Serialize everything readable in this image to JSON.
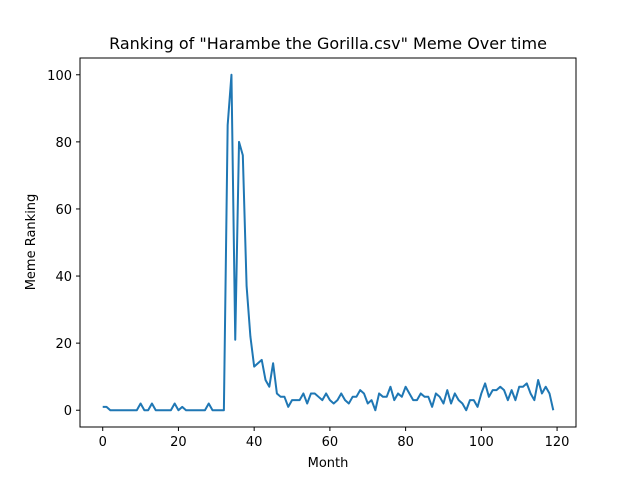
{
  "chart_data": {
    "type": "line",
    "title": "Ranking of \"Harambe the Gorilla.csv\" Meme Over time",
    "xlabel": "Month",
    "ylabel": "Meme Ranking",
    "xlim": [
      -6,
      125
    ],
    "ylim": [
      -5,
      105
    ],
    "xticks": [
      0,
      20,
      40,
      60,
      80,
      100,
      120
    ],
    "yticks": [
      0,
      20,
      40,
      60,
      80,
      100
    ],
    "grid": false,
    "line_color": "#1f77b4",
    "series": [
      {
        "x": [
          0,
          1,
          2,
          3,
          4,
          5,
          6,
          7,
          8,
          9,
          10,
          11,
          12,
          13,
          14,
          15,
          16,
          17,
          18,
          19,
          20,
          21,
          22,
          23,
          24,
          25,
          26,
          27,
          28,
          29,
          30,
          31,
          32,
          33,
          34,
          35,
          36,
          37,
          38,
          39,
          40,
          41,
          42,
          43,
          44,
          45,
          46,
          47,
          48,
          49,
          50,
          51,
          52,
          53,
          54,
          55,
          56,
          57,
          58,
          59,
          60,
          61,
          62,
          63,
          64,
          65,
          66,
          67,
          68,
          69,
          70,
          71,
          72,
          73,
          74,
          75,
          76,
          77,
          78,
          79,
          80,
          81,
          82,
          83,
          84,
          85,
          86,
          87,
          88,
          89,
          90,
          91,
          92,
          93,
          94,
          95,
          96,
          97,
          98,
          99,
          100,
          101,
          102,
          103,
          104,
          105,
          106,
          107,
          108,
          109,
          110,
          111,
          112,
          113,
          114,
          115,
          116,
          117,
          118,
          119
        ],
        "y": [
          1,
          1,
          0,
          0,
          0,
          0,
          0,
          0,
          0,
          0,
          2,
          0,
          0,
          2,
          0,
          0,
          0,
          0,
          0,
          2,
          0,
          1,
          0,
          0,
          0,
          0,
          0,
          0,
          2,
          0,
          0,
          0,
          0,
          85,
          100,
          21,
          80,
          76,
          37,
          22,
          13,
          14,
          15,
          9,
          7,
          14,
          5,
          4,
          4,
          1,
          3,
          3,
          3,
          5,
          2,
          5,
          5,
          4,
          3,
          5,
          3,
          2,
          3,
          5,
          3,
          2,
          4,
          4,
          6,
          5,
          2,
          3,
          0,
          5,
          4,
          4,
          7,
          3,
          5,
          4,
          7,
          5,
          3,
          3,
          5,
          4,
          4,
          1,
          5,
          4,
          2,
          6,
          2,
          5,
          3,
          2,
          0,
          3,
          3,
          1,
          5,
          8,
          4,
          6,
          6,
          7,
          6,
          3,
          6,
          3,
          7,
          7,
          8,
          5,
          3,
          9,
          5,
          7,
          5,
          0
        ]
      }
    ]
  }
}
